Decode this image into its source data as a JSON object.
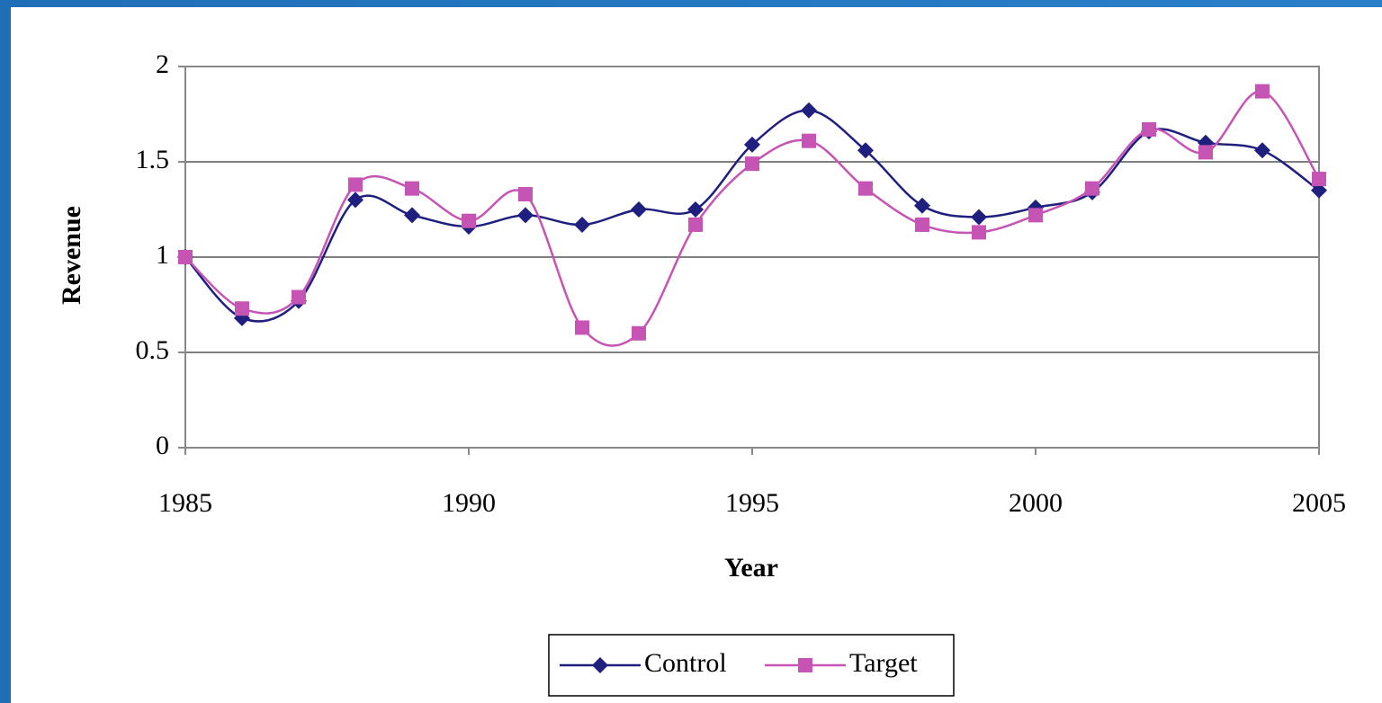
{
  "chart_data": {
    "type": "line",
    "xlabel": "Year",
    "ylabel": "Revenue",
    "x": [
      1985,
      1986,
      1987,
      1988,
      1989,
      1990,
      1991,
      1992,
      1993,
      1994,
      1995,
      1996,
      1997,
      1998,
      1999,
      2000,
      2001,
      2002,
      2003,
      2004,
      2005
    ],
    "series": [
      {
        "name": "Control",
        "color": "#1f1f7f",
        "marker": "diamond",
        "values": [
          1.0,
          0.68,
          0.77,
          1.3,
          1.22,
          1.16,
          1.22,
          1.17,
          1.25,
          1.25,
          1.59,
          1.77,
          1.56,
          1.27,
          1.21,
          1.26,
          1.34,
          1.66,
          1.6,
          1.56,
          1.35
        ]
      },
      {
        "name": "Target",
        "color": "#c654b4",
        "marker": "square",
        "values": [
          1.0,
          0.73,
          0.79,
          1.38,
          1.36,
          1.19,
          1.33,
          0.63,
          0.6,
          1.17,
          1.49,
          1.61,
          1.36,
          1.17,
          1.13,
          1.22,
          1.36,
          1.67,
          1.55,
          1.87,
          1.41
        ]
      }
    ],
    "xlim": [
      1985,
      2005
    ],
    "xticks": [
      1985,
      1990,
      1995,
      2000,
      2005
    ],
    "ylim": [
      0,
      2
    ],
    "yticks": [
      0,
      0.5,
      1,
      1.5,
      2
    ],
    "grid": true,
    "smooth": true,
    "legend": "bottom"
  }
}
